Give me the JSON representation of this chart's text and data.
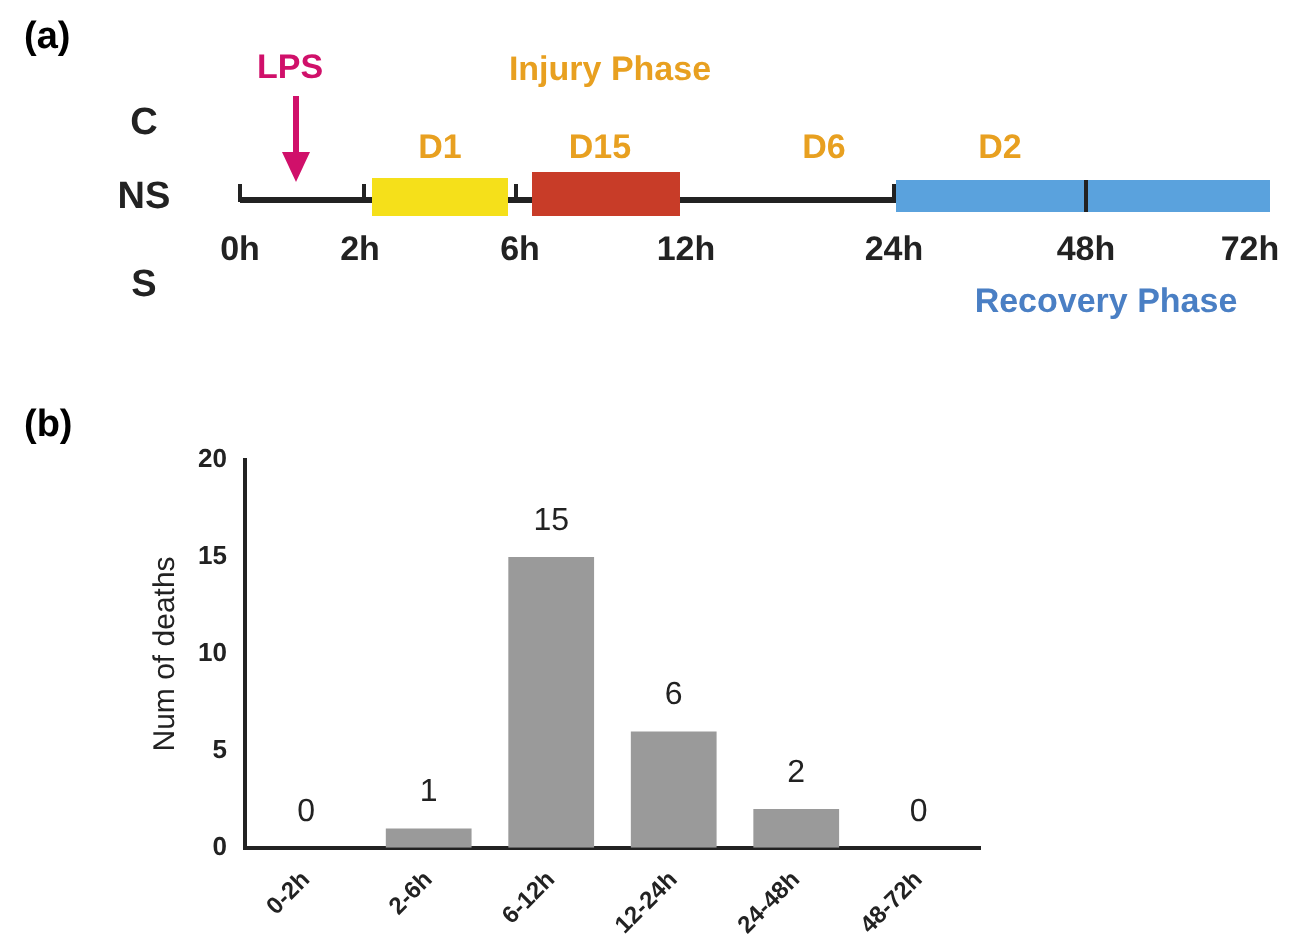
{
  "chart_data": [
    {
      "type": "other",
      "title": "(a)",
      "annotations": [
        "LPS",
        "Injury Phase",
        "C",
        "NS",
        "S",
        "D1",
        "D15",
        "D6",
        "D2",
        "0h",
        "2h",
        "6h",
        "12h",
        "24h",
        "48h",
        "72h",
        "Recovery Phase"
      ]
    },
    {
      "type": "bar",
      "title": "(b)",
      "categories": [
        "0-2h",
        "2-6h",
        "6-12h",
        "12-24h",
        "24-48h",
        "48-72h"
      ],
      "values": [
        0,
        1,
        15,
        6,
        2,
        0
      ],
      "color": "#9a9a9a",
      "ylabel": "Num of deaths",
      "ylim": [
        0,
        20
      ],
      "yticks": [
        0,
        5,
        10,
        15,
        20
      ],
      "data_labels": true,
      "grid": false,
      "legend": false
    }
  ]
}
